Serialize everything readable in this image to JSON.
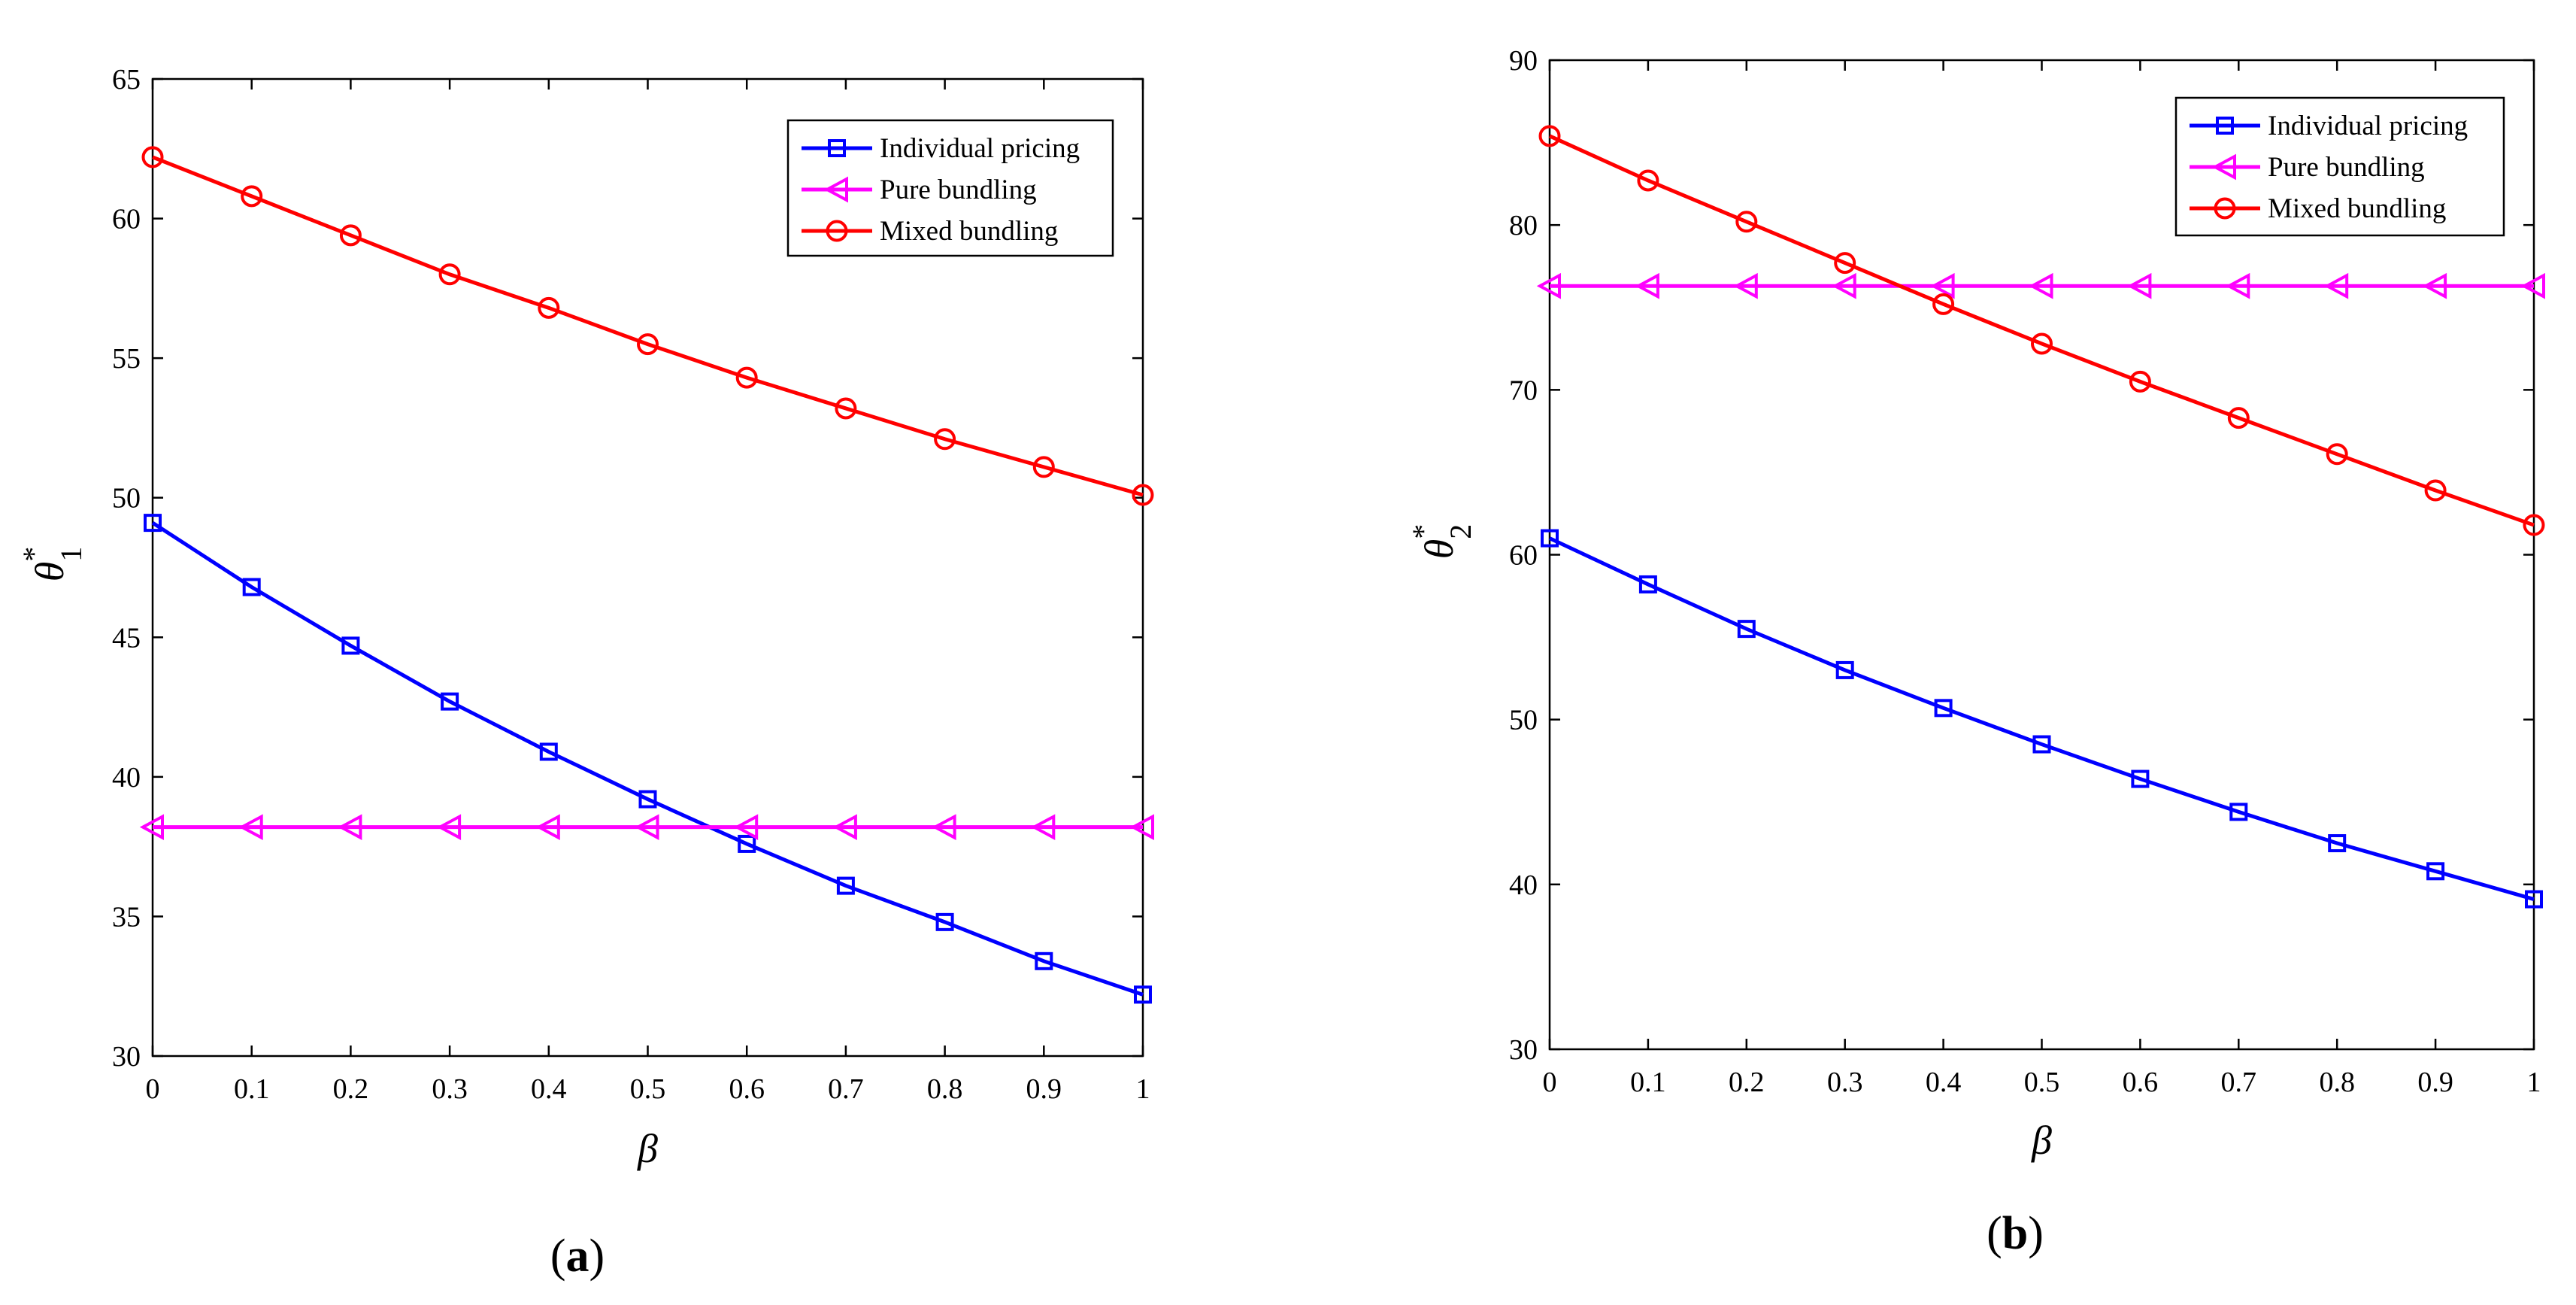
{
  "chart_data": [
    {
      "type": "line",
      "caption_letter": "a",
      "title": "",
      "xlabel": "β",
      "ylabel": "θ",
      "ylabel_subscript": "1",
      "ylabel_superscript": "*",
      "xlim": [
        0,
        1
      ],
      "ylim": [
        30,
        65
      ],
      "xticks": [
        0,
        0.1,
        0.2,
        0.3,
        0.4,
        0.5,
        0.6,
        0.7,
        0.8,
        0.9,
        1
      ],
      "xtick_labels": [
        "0",
        "0.1",
        "0.2",
        "0.3",
        "0.4",
        "0.5",
        "0.6",
        "0.7",
        "0.8",
        "0.9",
        "1"
      ],
      "yticks": [
        30,
        35,
        40,
        45,
        50,
        55,
        60,
        65
      ],
      "ytick_labels": [
        "30",
        "35",
        "40",
        "45",
        "50",
        "55",
        "60",
        "65"
      ],
      "legend_position": "top-right",
      "x": [
        0,
        0.1,
        0.2,
        0.3,
        0.4,
        0.5,
        0.6,
        0.7,
        0.8,
        0.9,
        1
      ],
      "series": [
        {
          "name": "Individual pricing",
          "color": "#0000ff",
          "marker": "square",
          "values": [
            49.1,
            46.8,
            44.7,
            42.7,
            40.9,
            39.2,
            37.6,
            36.1,
            34.8,
            33.4,
            32.2
          ]
        },
        {
          "name": "Pure bundling",
          "color": "#ff00ff",
          "marker": "triangle-left",
          "values": [
            38.2,
            38.2,
            38.2,
            38.2,
            38.2,
            38.2,
            38.2,
            38.2,
            38.2,
            38.2,
            38.2
          ]
        },
        {
          "name": "Mixed bundling",
          "color": "#ff0000",
          "marker": "circle",
          "values": [
            62.2,
            60.8,
            59.4,
            58.0,
            56.8,
            55.5,
            54.3,
            53.2,
            52.1,
            51.1,
            50.1
          ]
        }
      ]
    },
    {
      "type": "line",
      "caption_letter": "b",
      "title": "",
      "xlabel": "β",
      "ylabel": "θ",
      "ylabel_subscript": "2",
      "ylabel_superscript": "*",
      "xlim": [
        0,
        1
      ],
      "ylim": [
        30,
        90
      ],
      "xticks": [
        0,
        0.1,
        0.2,
        0.3,
        0.4,
        0.5,
        0.6,
        0.7,
        0.8,
        0.9,
        1
      ],
      "xtick_labels": [
        "0",
        "0.1",
        "0.2",
        "0.3",
        "0.4",
        "0.5",
        "0.6",
        "0.7",
        "0.8",
        "0.9",
        "1"
      ],
      "yticks": [
        30,
        40,
        50,
        60,
        70,
        80,
        90
      ],
      "ytick_labels": [
        "30",
        "40",
        "50",
        "60",
        "70",
        "80",
        "90"
      ],
      "legend_position": "top-right",
      "x": [
        0,
        0.1,
        0.2,
        0.3,
        0.4,
        0.5,
        0.6,
        0.7,
        0.8,
        0.9,
        1
      ],
      "series": [
        {
          "name": "Individual pricing",
          "color": "#0000ff",
          "marker": "square",
          "values": [
            61.0,
            58.2,
            55.5,
            53.0,
            50.7,
            48.5,
            46.4,
            44.4,
            42.5,
            40.8,
            39.1
          ]
        },
        {
          "name": "Pure bundling",
          "color": "#ff00ff",
          "marker": "triangle-left",
          "values": [
            76.3,
            76.3,
            76.3,
            76.3,
            76.3,
            76.3,
            76.3,
            76.3,
            76.3,
            76.3,
            76.3
          ]
        },
        {
          "name": "Mixed bundling",
          "color": "#ff0000",
          "marker": "circle",
          "values": [
            85.4,
            82.7,
            80.2,
            77.7,
            75.2,
            72.8,
            70.5,
            68.3,
            66.1,
            63.9,
            61.8
          ]
        }
      ]
    }
  ]
}
